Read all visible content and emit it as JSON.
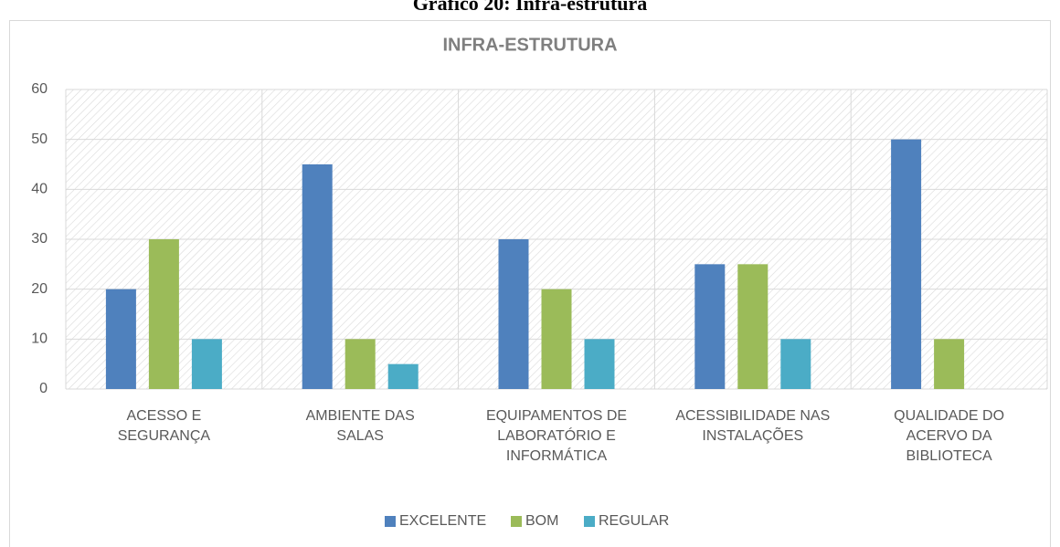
{
  "caption": "Gráfico 20: Infra-estrutura",
  "chart_data": {
    "type": "bar",
    "title": "INFRA-ESTRUTURA",
    "categories": [
      "ACESSO E\nSEGURANÇA",
      "AMBIENTE DAS\nSALAS",
      "EQUIPAMENTOS DE\nLABORATÓRIO E\nINFORMÁTICA",
      "ACESSIBILIDADE NAS\nINSTALAÇÕES",
      "QUALIDADE DO\nACERVO DA\nBIBLIOTECA"
    ],
    "series": [
      {
        "name": "EXCELENTE",
        "color": "#4f81bd",
        "values": [
          20,
          45,
          30,
          25,
          50
        ]
      },
      {
        "name": "BOM",
        "color": "#9bbb59",
        "values": [
          30,
          10,
          20,
          25,
          10
        ]
      },
      {
        "name": "REGULAR",
        "color": "#4bacc6",
        "values": [
          10,
          5,
          10,
          10,
          0
        ]
      }
    ],
    "ylim": [
      0,
      60
    ],
    "yticks": [
      0,
      10,
      20,
      30,
      40,
      50,
      60
    ],
    "grid": true,
    "legend": "bottom"
  }
}
